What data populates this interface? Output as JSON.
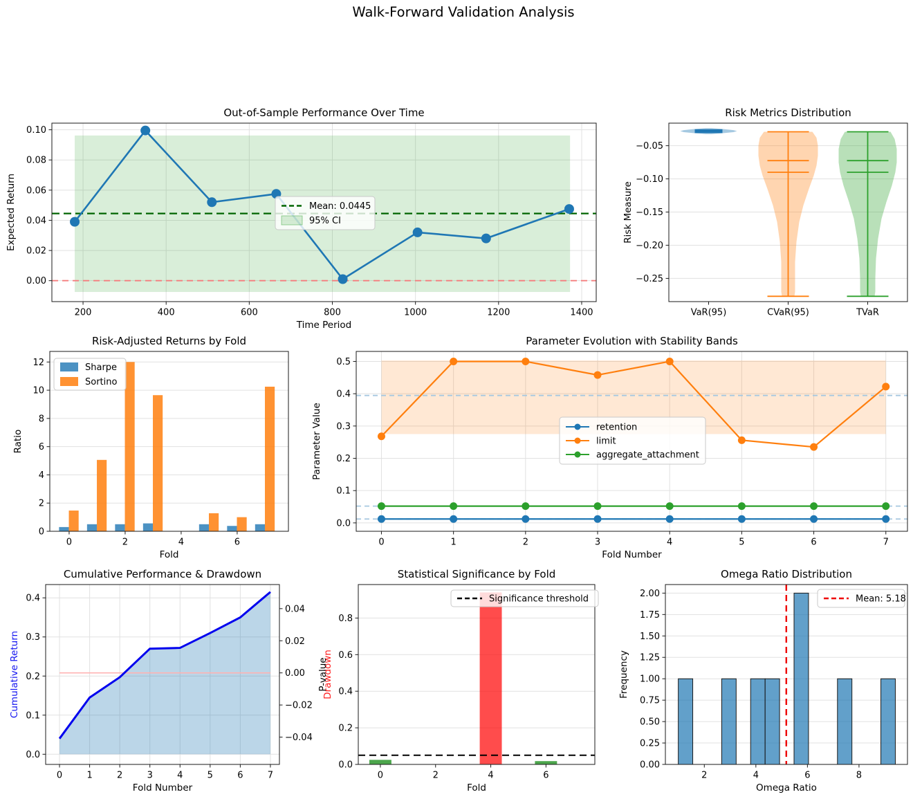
{
  "figure": {
    "title": "Walk-Forward Validation Analysis"
  },
  "chart_data": [
    {
      "id": "oos",
      "type": "line",
      "title": "Out-of-Sample Performance Over Time",
      "xlabel": "Time Period",
      "ylabel": "Expected Return",
      "xlim": [
        125,
        1435
      ],
      "ylim": [
        -0.0139,
        0.1044
      ],
      "xticks": [
        {
          "v": 200,
          "l": "200"
        },
        {
          "v": 400,
          "l": "400"
        },
        {
          "v": 600,
          "l": "600"
        },
        {
          "v": 800,
          "l": "800"
        },
        {
          "v": 1000,
          "l": "1000"
        },
        {
          "v": 1200,
          "l": "1200"
        },
        {
          "v": 1400,
          "l": "1400"
        }
      ],
      "yticks": [
        {
          "v": 0.0,
          "l": "0.00"
        },
        {
          "v": 0.02,
          "l": "0.02"
        },
        {
          "v": 0.04,
          "l": "0.04"
        },
        {
          "v": 0.06,
          "l": "0.06"
        },
        {
          "v": 0.08,
          "l": "0.08"
        },
        {
          "v": 0.1,
          "l": "0.10"
        }
      ],
      "x": [
        180,
        350,
        510,
        665,
        825,
        1005,
        1170,
        1370
      ],
      "y": [
        0.039,
        0.0995,
        0.052,
        0.0575,
        0.001,
        0.032,
        0.028,
        0.0475
      ],
      "mean_value": 0.0445,
      "zero_value": 0.0,
      "ci_band": {
        "x0": 180,
        "x1": 1372,
        "y0": -0.0075,
        "y1": 0.0962
      },
      "colors": {
        "line": "#1f77b4",
        "mean": "#006400",
        "zero": "#f57d7d",
        "band": "rgba(44,160,44,0.18)"
      },
      "legend": [
        {
          "label": "Mean: 0.0445",
          "swatch": "dash",
          "color": "#006400"
        },
        {
          "label": "95% CI",
          "swatch": "patch",
          "color": "rgba(44,160,44,0.18)",
          "edge": "rgba(44,160,44,0.45)"
        }
      ]
    },
    {
      "id": "risk",
      "type": "violin",
      "title": "Risk Metrics Distribution",
      "xlabel": "",
      "ylabel": "Risk Measure",
      "xlim": [
        0.5,
        3.5
      ],
      "ylim": [
        -0.285,
        -0.016
      ],
      "xticks": [
        {
          "v": 1,
          "l": "VaR(95)"
        },
        {
          "v": 2,
          "l": "CVaR(95)"
        },
        {
          "v": 3,
          "l": "TVaR"
        }
      ],
      "yticks": [
        {
          "v": -0.05,
          "l": "−0.05"
        },
        {
          "v": -0.1,
          "l": "−0.10"
        },
        {
          "v": -0.15,
          "l": "−0.15"
        },
        {
          "v": -0.2,
          "l": "−0.20"
        },
        {
          "v": -0.25,
          "l": "−0.25"
        }
      ],
      "violins": [
        {
          "label": "VaR(95)",
          "cx": 1,
          "line": "#1f77b4",
          "fill": "rgba(31,119,180,0.4)",
          "profile": [
            [
              -0.0235,
              4
            ],
            [
              -0.025,
              22
            ],
            [
              -0.0265,
              36
            ],
            [
              -0.028,
              41
            ],
            [
              -0.0295,
              36
            ],
            [
              -0.031,
              22
            ],
            [
              -0.0325,
              4
            ]
          ],
          "box": {
            "v0": -0.0252,
            "v1": -0.031,
            "hw": 20
          }
        },
        {
          "label": "CVaR(95)",
          "cx": 2,
          "line": "#ff7f0e",
          "fill": "rgba(255,127,14,0.33)",
          "profile": [
            [
              -0.029,
              35
            ],
            [
              -0.038,
              41
            ],
            [
              -0.05,
              43
            ],
            [
              -0.065,
              43
            ],
            [
              -0.08,
              41
            ],
            [
              -0.095,
              37
            ],
            [
              -0.115,
              30
            ],
            [
              -0.14,
              22
            ],
            [
              -0.165,
              16
            ],
            [
              -0.195,
              12
            ],
            [
              -0.225,
              10
            ],
            [
              -0.255,
              10
            ],
            [
              -0.27,
              10
            ],
            [
              -0.277,
              9
            ]
          ],
          "stats": {
            "min": -0.277,
            "max": -0.029,
            "mean": -0.0725,
            "median": -0.09,
            "hw": 30
          }
        },
        {
          "label": "TVaR",
          "cx": 3,
          "line": "#2ca02c",
          "fill": "rgba(44,160,44,0.33)",
          "profile": [
            [
              -0.029,
              33
            ],
            [
              -0.04,
              39
            ],
            [
              -0.055,
              42
            ],
            [
              -0.075,
              42
            ],
            [
              -0.09,
              40
            ],
            [
              -0.11,
              35
            ],
            [
              -0.135,
              27
            ],
            [
              -0.16,
              20
            ],
            [
              -0.19,
              15
            ],
            [
              -0.22,
              12
            ],
            [
              -0.25,
              11
            ],
            [
              -0.27,
              11
            ],
            [
              -0.277,
              10
            ]
          ],
          "stats": {
            "min": -0.277,
            "max": -0.029,
            "mean": -0.0725,
            "median": -0.09,
            "hw": 30
          }
        }
      ]
    },
    {
      "id": "ratios",
      "type": "bar",
      "title": "Risk-Adjusted Returns by Fold",
      "xlabel": "Fold",
      "ylabel": "Ratio",
      "xlim": [
        -0.69,
        7.83
      ],
      "ylim": [
        0,
        12.75
      ],
      "xticks": [
        {
          "v": 0,
          "l": "0"
        },
        {
          "v": 2,
          "l": "2"
        },
        {
          "v": 4,
          "l": "4"
        },
        {
          "v": 6,
          "l": "6"
        }
      ],
      "yticks": [
        {
          "v": 0,
          "l": "0"
        },
        {
          "v": 2,
          "l": "2"
        },
        {
          "v": 4,
          "l": "4"
        },
        {
          "v": 6,
          "l": "6"
        },
        {
          "v": 8,
          "l": "8"
        },
        {
          "v": 10,
          "l": "10"
        },
        {
          "v": 12,
          "l": "12"
        }
      ],
      "categories": [
        0,
        1,
        2,
        3,
        4,
        5,
        6,
        7
      ],
      "series": [
        {
          "name": "Sharpe",
          "color": "rgba(31,119,180,0.8)",
          "values": [
            0.3,
            0.5,
            0.5,
            0.56,
            0,
            0.5,
            0.38,
            0.5
          ]
        },
        {
          "name": "Sortino",
          "color": "rgba(255,127,14,0.85)",
          "values": [
            1.47,
            5.06,
            12.0,
            9.65,
            0,
            1.28,
            1.0,
            10.25
          ]
        }
      ],
      "legend": [
        {
          "label": "Sharpe",
          "swatch": "patch",
          "color": "rgba(31,119,180,0.8)"
        },
        {
          "label": "Sortino",
          "swatch": "patch",
          "color": "rgba(255,127,14,0.85)"
        }
      ]
    },
    {
      "id": "params",
      "type": "line",
      "title": "Parameter Evolution with Stability Bands",
      "xlabel": "Fold Number",
      "ylabel": "Parameter Value",
      "xlim": [
        -0.35,
        7.3
      ],
      "ylim": [
        -0.026,
        0.531
      ],
      "xticks": [
        {
          "v": 0,
          "l": "0"
        },
        {
          "v": 1,
          "l": "1"
        },
        {
          "v": 2,
          "l": "2"
        },
        {
          "v": 3,
          "l": "3"
        },
        {
          "v": 4,
          "l": "4"
        },
        {
          "v": 5,
          "l": "5"
        },
        {
          "v": 6,
          "l": "6"
        },
        {
          "v": 7,
          "l": "7"
        }
      ],
      "yticks": [
        {
          "v": 0.0,
          "l": "0.0"
        },
        {
          "v": 0.1,
          "l": "0.1"
        },
        {
          "v": 0.2,
          "l": "0.2"
        },
        {
          "v": 0.3,
          "l": "0.3"
        },
        {
          "v": 0.4,
          "l": "0.4"
        },
        {
          "v": 0.5,
          "l": "0.5"
        }
      ],
      "x": [
        0,
        1,
        2,
        3,
        4,
        5,
        6,
        7
      ],
      "series": [
        {
          "name": "retention",
          "color": "#1f77b4",
          "values": [
            0.012,
            0.012,
            0.012,
            0.012,
            0.012,
            0.012,
            0.012,
            0.012
          ]
        },
        {
          "name": "limit",
          "color": "#ff7f0e",
          "values": [
            0.268,
            0.5,
            0.5,
            0.458,
            0.5,
            0.256,
            0.235,
            0.422
          ]
        },
        {
          "name": "aggregate_attachment",
          "color": "#2ca02c",
          "values": [
            0.052,
            0.052,
            0.052,
            0.052,
            0.052,
            0.052,
            0.052,
            0.052
          ]
        }
      ],
      "band": {
        "x0": 0,
        "x1": 7,
        "y0": 0.275,
        "y1": 0.503,
        "fill": "rgba(255,127,14,0.18)"
      },
      "mean_lines": [
        0.3946,
        0.052,
        0.012
      ],
      "mean_line_color": "#a6c8e0",
      "legend": [
        {
          "label": "retention",
          "swatch": "marker",
          "color": "#1f77b4"
        },
        {
          "label": "limit",
          "swatch": "marker",
          "color": "#ff7f0e"
        },
        {
          "label": "aggregate_attachment",
          "swatch": "marker",
          "color": "#2ca02c"
        }
      ]
    },
    {
      "id": "cum",
      "type": "area",
      "title": "Cumulative Performance & Drawdown",
      "xlabel": "Fold Number",
      "ylabel": "Cumulative Return",
      "ylabel_right": "Drawdown",
      "xlim": [
        -0.46,
        7.3
      ],
      "ylim": [
        -0.026,
        0.434
      ],
      "ylim_right": [
        -0.057,
        0.055
      ],
      "xticks": [
        {
          "v": 0,
          "l": "0"
        },
        {
          "v": 1,
          "l": "1"
        },
        {
          "v": 2,
          "l": "2"
        },
        {
          "v": 3,
          "l": "3"
        },
        {
          "v": 4,
          "l": "4"
        },
        {
          "v": 5,
          "l": "5"
        },
        {
          "v": 6,
          "l": "6"
        },
        {
          "v": 7,
          "l": "7"
        }
      ],
      "yticks": [
        {
          "v": 0.0,
          "l": "0.0"
        },
        {
          "v": 0.1,
          "l": "0.1"
        },
        {
          "v": 0.2,
          "l": "0.2"
        },
        {
          "v": 0.3,
          "l": "0.3"
        },
        {
          "v": 0.4,
          "l": "0.4"
        }
      ],
      "yticks_right": [
        {
          "v": 0.04,
          "l": "0.04"
        },
        {
          "v": 0.02,
          "l": "0.02"
        },
        {
          "v": 0.0,
          "l": "0.00"
        },
        {
          "v": -0.02,
          "l": "−0.02"
        },
        {
          "v": -0.04,
          "l": "−0.04"
        }
      ],
      "x": [
        0,
        1,
        2,
        3,
        4,
        5,
        6,
        7
      ],
      "cumulative": [
        0.04,
        0.145,
        0.197,
        0.27,
        0.272,
        0.31,
        0.35,
        0.415
      ],
      "drawdown": [
        0,
        0,
        0,
        0,
        0,
        0,
        0,
        0
      ],
      "colors": {
        "line": "#0000ee",
        "fill": "rgba(31,119,180,0.3)",
        "drawdown": "#ffb2b2",
        "ylabel": "#1515f0",
        "ylabel_right": "#ff1a1a"
      }
    },
    {
      "id": "pval",
      "type": "bar",
      "title": "Statistical Significance by Fold",
      "xlabel": "Fold",
      "ylabel": "P-value",
      "xlim": [
        -0.8,
        7.77
      ],
      "ylim": [
        0,
        0.983
      ],
      "xticks": [
        {
          "v": 0,
          "l": "0"
        },
        {
          "v": 2,
          "l": "2"
        },
        {
          "v": 4,
          "l": "4"
        },
        {
          "v": 6,
          "l": "6"
        }
      ],
      "yticks": [
        {
          "v": 0.0,
          "l": "0.0"
        },
        {
          "v": 0.2,
          "l": "0.2"
        },
        {
          "v": 0.4,
          "l": "0.4"
        },
        {
          "v": 0.6,
          "l": "0.6"
        },
        {
          "v": 0.8,
          "l": "0.8"
        }
      ],
      "categories": [
        0,
        1,
        2,
        3,
        4,
        5,
        6,
        7
      ],
      "values": [
        0.025,
        0,
        0,
        0,
        0.94,
        0,
        0.018,
        0
      ],
      "bar_colors": [
        "rgba(0,128,0,0.7)",
        null,
        null,
        null,
        "rgba(255,0,0,0.7)",
        null,
        "rgba(0,128,0,0.7)",
        null
      ],
      "threshold": 0.05,
      "legend": [
        {
          "label": "Significance threshold",
          "swatch": "dash",
          "color": "#000000"
        }
      ]
    },
    {
      "id": "omega",
      "type": "histogram",
      "title": "Omega Ratio Distribution",
      "xlabel": "Omega Ratio",
      "ylabel": "Frequency",
      "xlim": [
        0.49,
        9.88
      ],
      "ylim": [
        0,
        2.1
      ],
      "xticks": [
        {
          "v": 2,
          "l": "2"
        },
        {
          "v": 4,
          "l": "4"
        },
        {
          "v": 6,
          "l": "6"
        },
        {
          "v": 8,
          "l": "8"
        }
      ],
      "yticks": [
        {
          "v": 0.0,
          "l": "0.00"
        },
        {
          "v": 0.25,
          "l": "0.25"
        },
        {
          "v": 0.5,
          "l": "0.50"
        },
        {
          "v": 0.75,
          "l": "0.75"
        },
        {
          "v": 1.0,
          "l": "1.00"
        },
        {
          "v": 1.25,
          "l": "1.25"
        },
        {
          "v": 1.5,
          "l": "1.50"
        },
        {
          "v": 1.75,
          "l": "1.75"
        },
        {
          "v": 2.0,
          "l": "2.00"
        }
      ],
      "bin_start": 0.99,
      "bin_width": 0.5613,
      "counts": [
        1,
        0,
        0,
        1,
        0,
        1,
        1,
        0,
        2,
        0,
        0,
        1,
        0,
        0,
        1
      ],
      "mean": 5.18,
      "colors": {
        "bar": "rgba(31,119,180,0.7)",
        "edge": "#1a1a1a",
        "mean": "#ee0000"
      },
      "legend": [
        {
          "label": "Mean: 5.18",
          "swatch": "dash",
          "color": "#ee0000"
        }
      ]
    }
  ]
}
